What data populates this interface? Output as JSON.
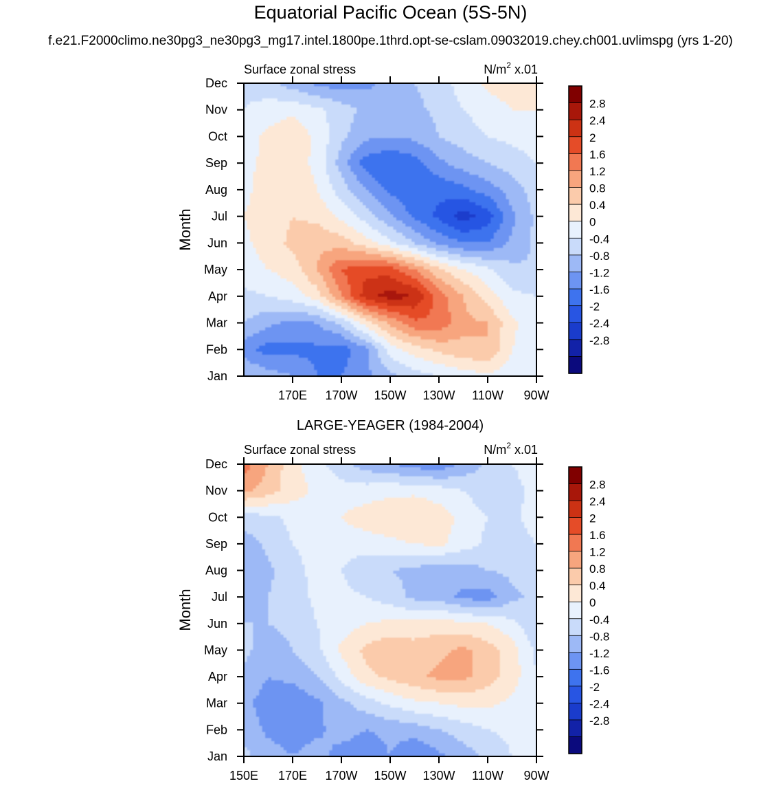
{
  "figure": {
    "title": "Equatorial Pacific Ocean (5S-5N)",
    "subtitle": "f.e21.F2000climo.ne30pg3_ne30pg3_mg17.intel.1800pe.1thrd.opt-se-cslam.09032019.chey.ch001.uvlimspg (yrs 1-20)"
  },
  "chart_data": [
    {
      "type": "heatmap",
      "name": "model",
      "panel_title": "",
      "left_label": "Surface zonal stress",
      "right_label": "N/m",
      "right_label_sup": "2",
      "right_label_suffix": " x.01",
      "ylabel": "Month",
      "x_tick_labels": [
        "170E",
        "170W",
        "150W",
        "130W",
        "110W",
        "90W"
      ],
      "x_tick_values": [
        170,
        190,
        210,
        230,
        250,
        270
      ],
      "xlim": [
        150,
        270
      ],
      "y_tick_labels": [
        "Jan",
        "Feb",
        "Mar",
        "Apr",
        "May",
        "Jun",
        "Jul",
        "Aug",
        "Sep",
        "Oct",
        "Nov",
        "Dec"
      ],
      "x": [
        150,
        160,
        170,
        180,
        190,
        200,
        210,
        220,
        230,
        240,
        250,
        260,
        270
      ],
      "values": [
        [
          -0.4,
          -0.6,
          -0.8,
          -1.2,
          -1.2,
          -0.9,
          -0.5,
          -0.2,
          0.0,
          0.2,
          0.3,
          0.2,
          0.1
        ],
        [
          -1.0,
          -1.4,
          -1.3,
          -1.3,
          -1.4,
          -0.9,
          0.2,
          0.6,
          0.9,
          1.1,
          1.2,
          0.4,
          0.1
        ],
        [
          -0.4,
          -0.7,
          -0.9,
          -0.8,
          -0.3,
          0.6,
          1.3,
          1.9,
          1.9,
          1.3,
          1.2,
          0.5,
          0.1
        ],
        [
          -0.1,
          0.0,
          0.2,
          0.6,
          1.6,
          2.6,
          3.0,
          2.8,
          1.8,
          1.2,
          0.6,
          0.1,
          0.0
        ],
        [
          0.2,
          0.4,
          0.6,
          1.2,
          2.0,
          2.3,
          2.2,
          1.6,
          0.9,
          0.4,
          0.1,
          -0.3,
          -0.4
        ],
        [
          0.3,
          0.6,
          0.9,
          1.1,
          1.0,
          0.6,
          0.1,
          -0.4,
          -0.9,
          -1.2,
          -1.2,
          -0.7,
          -0.3
        ],
        [
          0.4,
          0.6,
          0.8,
          0.7,
          0.3,
          -0.2,
          -0.7,
          -1.3,
          -1.7,
          -2.2,
          -1.8,
          -0.9,
          -0.3
        ],
        [
          0.3,
          0.6,
          0.7,
          0.4,
          -0.2,
          -0.8,
          -1.3,
          -1.6,
          -1.5,
          -1.3,
          -1.0,
          -0.6,
          -0.2
        ],
        [
          0.3,
          0.5,
          0.6,
          0.3,
          -0.6,
          -1.4,
          -1.6,
          -1.4,
          -0.9,
          -0.6,
          -0.4,
          -0.2,
          0.0
        ],
        [
          0.2,
          0.5,
          0.7,
          0.3,
          -0.3,
          -0.7,
          -0.8,
          -0.7,
          -0.4,
          -0.2,
          0.0,
          0.1,
          0.2
        ],
        [
          0.0,
          0.2,
          0.3,
          0.1,
          -0.2,
          -0.5,
          -0.6,
          -0.5,
          -0.3,
          0.0,
          0.2,
          0.4,
          0.4
        ],
        [
          -0.1,
          -0.3,
          -0.6,
          -0.9,
          -1.0,
          -0.9,
          -0.7,
          -0.4,
          -0.2,
          0.2,
          0.5,
          0.6,
          0.4
        ]
      ]
    },
    {
      "type": "heatmap",
      "name": "obs",
      "panel_title": "LARGE-YEAGER (1984-2004)",
      "left_label": "Surface zonal stress",
      "right_label": "N/m",
      "right_label_sup": "2",
      "right_label_suffix": " x.01",
      "ylabel": "Month",
      "x_tick_labels": [
        "150E",
        "170E",
        "170W",
        "150W",
        "130W",
        "110W",
        "90W"
      ],
      "x_tick_values": [
        150,
        170,
        190,
        210,
        230,
        250,
        270
      ],
      "xlim": [
        150,
        270
      ],
      "y_tick_labels": [
        "Jan",
        "Feb",
        "Mar",
        "Apr",
        "May",
        "Jun",
        "Jul",
        "Aug",
        "Sep",
        "Oct",
        "Nov",
        "Dec"
      ],
      "x": [
        150,
        160,
        170,
        180,
        190,
        200,
        210,
        220,
        230,
        240,
        250,
        260,
        270
      ],
      "values": [
        [
          -0.3,
          -0.6,
          -0.8,
          -0.6,
          -1.0,
          -1.1,
          -0.8,
          -1.2,
          -0.9,
          -0.6,
          -0.3,
          0.0,
          0.1
        ],
        [
          -0.5,
          -0.9,
          -1.0,
          -0.9,
          -0.6,
          -0.8,
          -0.7,
          -0.6,
          -0.4,
          -0.2,
          0.0,
          0.1,
          0.1
        ],
        [
          -0.7,
          -1.0,
          -1.1,
          -0.9,
          -0.5,
          -0.2,
          0.1,
          0.3,
          0.4,
          0.5,
          0.5,
          0.3,
          0.0
        ],
        [
          -0.5,
          -0.8,
          -0.7,
          -0.4,
          0.1,
          0.7,
          0.9,
          1.1,
          1.3,
          1.3,
          1.0,
          0.6,
          0.0
        ],
        [
          -0.3,
          -0.6,
          -0.4,
          -0.1,
          0.5,
          0.9,
          1.1,
          1.0,
          1.1,
          1.3,
          1.0,
          0.6,
          -0.1
        ],
        [
          -0.4,
          -0.4,
          -0.3,
          0.0,
          0.2,
          0.4,
          0.5,
          0.5,
          0.6,
          0.5,
          0.4,
          0.1,
          -0.3
        ],
        [
          -0.6,
          -0.4,
          -0.2,
          0.1,
          0.1,
          0.0,
          -0.2,
          -0.5,
          -0.6,
          -0.9,
          -1.0,
          -0.5,
          -0.3
        ],
        [
          -0.8,
          -0.5,
          -0.1,
          0.1,
          0.0,
          -0.3,
          -0.4,
          -0.5,
          -0.7,
          -0.6,
          -0.4,
          -0.3,
          -0.2
        ],
        [
          -0.6,
          -0.3,
          0.0,
          0.1,
          0.2,
          0.2,
          0.3,
          0.4,
          0.5,
          0.2,
          -0.1,
          -0.2,
          0.0
        ],
        [
          -0.2,
          -0.1,
          0.1,
          0.2,
          0.4,
          0.6,
          0.7,
          0.8,
          0.6,
          0.3,
          0.0,
          -0.1,
          0.2
        ],
        [
          1.3,
          1.0,
          0.6,
          0.3,
          0.2,
          0.2,
          0.3,
          0.3,
          0.2,
          0.0,
          -0.3,
          -0.3,
          0.3
        ],
        [
          1.8,
          1.2,
          0.5,
          0.2,
          -0.3,
          -0.6,
          -0.8,
          -1.0,
          -1.1,
          -0.7,
          -0.3,
          0.0,
          0.4
        ]
      ]
    }
  ],
  "colorbar": {
    "labels": [
      "2.8",
      "2.4",
      "2",
      "1.6",
      "1.2",
      "0.8",
      "0.4",
      "0",
      "-0.4",
      "-0.8",
      "-1.2",
      "-1.6",
      "-2",
      "-2.4",
      "-2.8"
    ],
    "levels": [
      -3.2,
      -2.8,
      -2.4,
      -2.0,
      -1.6,
      -1.2,
      -0.8,
      -0.4,
      0.0,
      0.4,
      0.8,
      1.2,
      1.6,
      2.0,
      2.4,
      2.8,
      3.2
    ],
    "colors": [
      "#0b0a7d",
      "#1222a8",
      "#1a3ccc",
      "#2855e3",
      "#3e73ee",
      "#6d94f2",
      "#9db9f6",
      "#c9dbfa",
      "#e8f1fd",
      "#fde8d6",
      "#fbcbab",
      "#f7a57e",
      "#f17852",
      "#e54c28",
      "#cc3214",
      "#a8170a",
      "#800000"
    ]
  }
}
